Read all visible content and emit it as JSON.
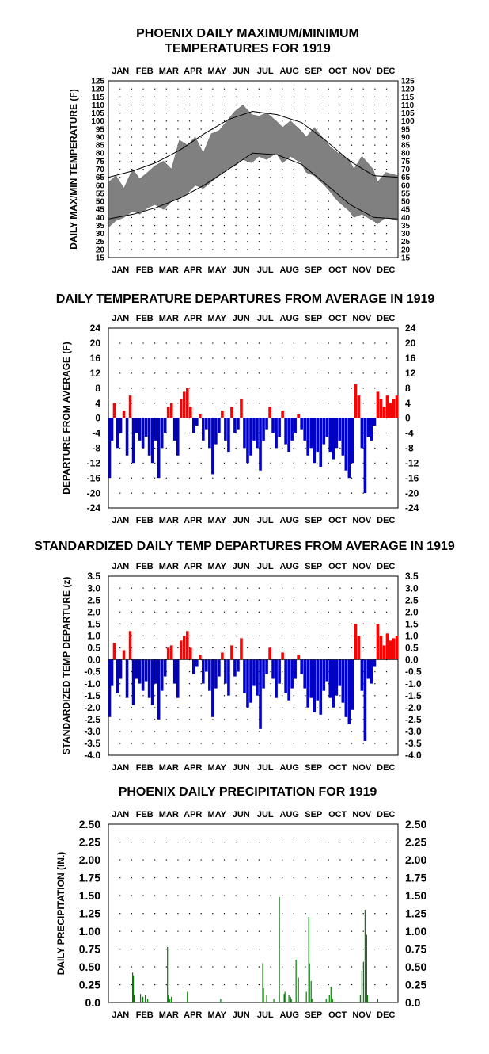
{
  "months": [
    "JAN",
    "FEB",
    "MAR",
    "APR",
    "MAY",
    "JUN",
    "JUL",
    "AUG",
    "SEP",
    "OCT",
    "NOV",
    "DEC"
  ],
  "colors": {
    "positive": "#ff0000",
    "negative": "#0000cc",
    "precip": "#008000",
    "band": "#808080",
    "line": "#000000"
  },
  "chart_data": [
    {
      "type": "area",
      "title": "PHOENIX DAILY MAXIMUM/MINIMUM\nTEMPERATURES FOR 1919",
      "ylabel": "DAILY MAX/MIN TEMPERATURE (F)",
      "ylim": [
        15,
        125
      ],
      "yticks": [
        15,
        20,
        25,
        30,
        35,
        40,
        45,
        50,
        55,
        60,
        65,
        70,
        75,
        80,
        85,
        90,
        95,
        100,
        105,
        110,
        115,
        120,
        125
      ],
      "grid": true,
      "series": [
        {
          "kind": "band",
          "x_doy": [
            1,
            10,
            20,
            31,
            40,
            50,
            59,
            70,
            80,
            90,
            100,
            110,
            120,
            130,
            140,
            150,
            160,
            170,
            181,
            190,
            200,
            212,
            220,
            230,
            243,
            250,
            260,
            273,
            280,
            290,
            304,
            310,
            320,
            334,
            340,
            350,
            365
          ],
          "max": [
            62,
            66,
            58,
            70,
            64,
            68,
            72,
            75,
            70,
            88,
            85,
            90,
            80,
            92,
            94,
            100,
            106,
            110,
            104,
            103,
            105,
            100,
            96,
            100,
            94,
            90,
            96,
            88,
            84,
            80,
            76,
            70,
            78,
            70,
            62,
            68,
            66
          ],
          "min": [
            34,
            38,
            40,
            44,
            42,
            46,
            48,
            45,
            50,
            52,
            55,
            60,
            58,
            62,
            66,
            70,
            72,
            76,
            74,
            78,
            76,
            80,
            74,
            78,
            74,
            68,
            66,
            60,
            56,
            50,
            44,
            40,
            42,
            38,
            36,
            40,
            38
          ]
        },
        {
          "kind": "line",
          "name": "normal max",
          "x_doy": [
            1,
            32,
            60,
            91,
            121,
            152,
            182,
            213,
            244,
            274,
            305,
            335,
            365
          ],
          "y": [
            65,
            69,
            74,
            82,
            92,
            101,
            106,
            104,
            99,
            88,
            75,
            66,
            65
          ]
        },
        {
          "kind": "line",
          "name": "normal min",
          "x_doy": [
            1,
            32,
            60,
            91,
            121,
            152,
            182,
            213,
            244,
            274,
            305,
            335,
            365
          ],
          "y": [
            39,
            42,
            46,
            52,
            60,
            70,
            80,
            79,
            73,
            61,
            48,
            40,
            39
          ]
        }
      ]
    },
    {
      "type": "bar",
      "title": "DAILY TEMPERATURE DEPARTURES FROM AVERAGE IN 1919",
      "ylabel": "DEPARTURE FROM AVERAGE (F)",
      "ylim": [
        -24,
        24
      ],
      "yticks": [
        -24,
        -20,
        -16,
        -12,
        -8,
        -4,
        0,
        4,
        8,
        12,
        16,
        20,
        24
      ],
      "grid": true,
      "x_doy": [
        2,
        5,
        8,
        12,
        16,
        20,
        24,
        28,
        32,
        36,
        40,
        44,
        48,
        52,
        56,
        60,
        64,
        68,
        72,
        76,
        80,
        84,
        88,
        92,
        96,
        100,
        104,
        108,
        112,
        116,
        120,
        124,
        128,
        132,
        136,
        140,
        144,
        148,
        152,
        156,
        160,
        164,
        168,
        172,
        176,
        180,
        184,
        188,
        192,
        196,
        200,
        204,
        208,
        212,
        216,
        220,
        224,
        228,
        232,
        236,
        240,
        244,
        248,
        252,
        256,
        260,
        264,
        268,
        272,
        276,
        280,
        284,
        288,
        292,
        296,
        300,
        304,
        308,
        312,
        316,
        320,
        324,
        328,
        332,
        336,
        340,
        344,
        348,
        352,
        356,
        360,
        364
      ],
      "values": [
        -16,
        -6,
        4,
        -8,
        -4,
        2,
        -10,
        6,
        -12,
        -4,
        -6,
        -8,
        -5,
        -10,
        -12,
        -6,
        -16,
        -8,
        -4,
        3,
        4,
        -6,
        -10,
        5,
        7,
        8,
        3,
        -4,
        -2,
        1,
        -6,
        -3,
        -8,
        -15,
        -7,
        -4,
        2,
        -6,
        -9,
        3,
        -4,
        -3,
        5,
        -8,
        -12,
        -10,
        -6,
        -8,
        -14,
        -6,
        -3,
        3,
        -4,
        -8,
        -5,
        2,
        -7,
        -9,
        -6,
        -4,
        1,
        -3,
        -6,
        -10,
        -8,
        -12,
        -9,
        -13,
        -7,
        -5,
        -9,
        -11,
        -8,
        -6,
        -10,
        -14,
        -16,
        -12,
        9,
        6,
        -8,
        -20,
        -5,
        -6,
        -2,
        7,
        5,
        3,
        6,
        4,
        5,
        6
      ]
    },
    {
      "type": "bar",
      "title": "STANDARDIZED DAILY TEMP DEPARTURES FROM AVERAGE IN 1919",
      "ylabel": "STANDARDIZED TEMP DEPARTURE (z)",
      "ylim": [
        -4.0,
        3.5
      ],
      "yticks": [
        -4.0,
        -3.5,
        -3.0,
        -2.5,
        -2.0,
        -1.5,
        -1.0,
        -0.5,
        0.0,
        0.5,
        1.0,
        1.5,
        2.0,
        2.5,
        3.0,
        3.5
      ],
      "grid": true,
      "x_doy": [
        2,
        5,
        8,
        12,
        16,
        20,
        24,
        28,
        32,
        36,
        40,
        44,
        48,
        52,
        56,
        60,
        64,
        68,
        72,
        76,
        80,
        84,
        88,
        92,
        96,
        100,
        104,
        108,
        112,
        116,
        120,
        124,
        128,
        132,
        136,
        140,
        144,
        148,
        152,
        156,
        160,
        164,
        168,
        172,
        176,
        180,
        184,
        188,
        192,
        196,
        200,
        204,
        208,
        212,
        216,
        220,
        224,
        228,
        232,
        236,
        240,
        244,
        248,
        252,
        256,
        260,
        264,
        268,
        272,
        276,
        280,
        284,
        288,
        292,
        296,
        300,
        304,
        308,
        312,
        316,
        320,
        324,
        328,
        332,
        336,
        340,
        344,
        348,
        352,
        356,
        360,
        364
      ],
      "values": [
        -2.4,
        -1.1,
        0.7,
        -1.4,
        -0.8,
        0.4,
        -1.6,
        1.2,
        -1.9,
        -0.8,
        -1.0,
        -1.3,
        -0.9,
        -1.6,
        -1.9,
        -1.0,
        -2.5,
        -1.3,
        -0.7,
        0.5,
        0.6,
        -1.0,
        -1.6,
        0.8,
        1.0,
        1.2,
        0.5,
        -0.6,
        -0.3,
        0.2,
        -1.0,
        -0.5,
        -1.3,
        -2.4,
        -1.2,
        -0.7,
        0.3,
        -1.0,
        -1.5,
        0.6,
        -0.7,
        -0.5,
        0.9,
        -1.4,
        -2.0,
        -1.8,
        -1.1,
        -1.5,
        -2.9,
        -1.2,
        -0.6,
        0.5,
        -0.8,
        -1.6,
        -1.0,
        0.3,
        -1.4,
        -1.7,
        -1.2,
        -0.8,
        0.2,
        -0.6,
        -1.2,
        -2.0,
        -1.6,
        -2.2,
        -1.7,
        -2.3,
        -1.3,
        -0.9,
        -1.6,
        -2.0,
        -1.5,
        -1.1,
        -1.8,
        -2.4,
        -2.7,
        -2.1,
        1.5,
        1.0,
        -1.3,
        -3.4,
        -0.8,
        -1.0,
        -0.3,
        1.5,
        1.0,
        0.6,
        1.1,
        0.8,
        0.9,
        1.0
      ]
    },
    {
      "type": "bar",
      "title": "PHOENIX DAILY PRECIPITATION FOR 1919",
      "ylabel": "DAILY PRECIPITATION (IN.)",
      "ylim": [
        0.0,
        2.5
      ],
      "yticks": [
        "0.0",
        "0.25",
        "0.50",
        "0.75",
        "1.00",
        "1.25",
        "1.50",
        "1.75",
        "2.00",
        "2.25",
        "2.50"
      ],
      "grid": true,
      "x_doy": [
        31,
        32,
        33,
        41,
        44,
        47,
        50,
        75,
        76,
        78,
        80,
        100,
        142,
        195,
        196,
        200,
        209,
        216,
        222,
        223,
        228,
        230,
        231,
        237,
        240,
        250,
        253,
        254,
        256,
        257,
        275,
        279,
        281,
        283,
        318,
        320,
        322,
        324,
        326,
        327,
        340
      ],
      "values": [
        0.42,
        0.38,
        0.1,
        0.12,
        0.08,
        0.1,
        0.05,
        0.78,
        0.1,
        0.05,
        0.08,
        0.15,
        0.05,
        0.55,
        0.2,
        0.1,
        0.05,
        1.48,
        0.12,
        0.15,
        0.1,
        0.08,
        0.05,
        0.6,
        0.35,
        0.15,
        1.2,
        0.55,
        0.3,
        0.05,
        0.05,
        0.1,
        0.22,
        0.05,
        0.1,
        0.45,
        0.57,
        1.3,
        0.95,
        0.1,
        0.05
      ]
    }
  ]
}
